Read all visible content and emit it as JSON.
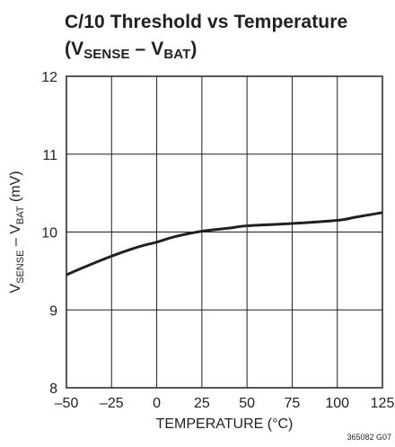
{
  "title_line1": "C/10 Threshold vs Temperature",
  "title_line2": {
    "open": "(V",
    "sub1": "SENSE",
    "mid": " – V",
    "sub2": "BAT",
    "close": ")"
  },
  "figure_id": "365082 G07",
  "chart_data": {
    "type": "line",
    "xlabel": "TEMPERATURE (°C)",
    "ylabel": {
      "pre": "V",
      "sub1": "SENSE",
      "mid": " – V",
      "sub2": "BAT",
      "post": " (mV)"
    },
    "xlim": [
      -50,
      125
    ],
    "ylim": [
      8,
      12
    ],
    "xticks": [
      -50,
      -25,
      0,
      25,
      50,
      75,
      100,
      125
    ],
    "xtick_labels": [
      "–50",
      "–25",
      "0",
      "25",
      "50",
      "75",
      "100",
      "125"
    ],
    "yticks": [
      8,
      9,
      10,
      11,
      12
    ],
    "ytick_labels": [
      "8",
      "9",
      "10",
      "11",
      "12"
    ],
    "grid": true,
    "series": [
      {
        "x": [
          -50,
          -40,
          -25,
          -10,
          0,
          10,
          25,
          40,
          50,
          75,
          100,
          110,
          125
        ],
        "y": [
          9.45,
          9.55,
          9.69,
          9.81,
          9.87,
          9.94,
          10.01,
          10.05,
          10.08,
          10.11,
          10.15,
          10.19,
          10.25
        ]
      }
    ]
  }
}
